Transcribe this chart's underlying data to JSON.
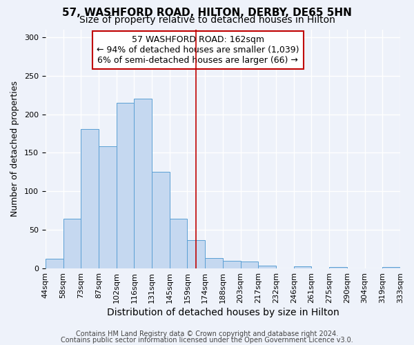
{
  "title": "57, WASHFORD ROAD, HILTON, DERBY, DE65 5HN",
  "subtitle": "Size of property relative to detached houses in Hilton",
  "xlabel": "Distribution of detached houses by size in Hilton",
  "ylabel": "Number of detached properties",
  "bin_labels": [
    "44sqm",
    "58sqm",
    "73sqm",
    "87sqm",
    "102sqm",
    "116sqm",
    "131sqm",
    "145sqm",
    "159sqm",
    "174sqm",
    "188sqm",
    "203sqm",
    "217sqm",
    "232sqm",
    "246sqm",
    "261sqm",
    "275sqm",
    "290sqm",
    "304sqm",
    "319sqm",
    "333sqm"
  ],
  "bar_heights": [
    13,
    65,
    181,
    158,
    215,
    220,
    125,
    65,
    37,
    14,
    10,
    9,
    4,
    0,
    3,
    0,
    2,
    0,
    0,
    2
  ],
  "bar_color": "#c5d8f0",
  "bar_edge_color": "#5a9fd4",
  "background_color": "#eef2fa",
  "grid_color": "#ffffff",
  "vline_color": "#c00000",
  "annotation_box_text": "57 WASHFORD ROAD: 162sqm\n← 94% of detached houses are smaller (1,039)\n6% of semi-detached houses are larger (66) →",
  "annotation_box_facecolor": "#ffffff",
  "annotation_box_edgecolor": "#c00000",
  "footnote1": "Contains HM Land Registry data © Crown copyright and database right 2024.",
  "footnote2": "Contains public sector information licensed under the Open Government Licence v3.0.",
  "ylim": [
    0,
    310
  ],
  "yticks": [
    0,
    50,
    100,
    150,
    200,
    250,
    300
  ],
  "title_fontsize": 11,
  "subtitle_fontsize": 10,
  "xlabel_fontsize": 10,
  "ylabel_fontsize": 9,
  "tick_fontsize": 8,
  "annotation_fontsize": 9,
  "footnote_fontsize": 7,
  "vline_bin_index": 8.5
}
